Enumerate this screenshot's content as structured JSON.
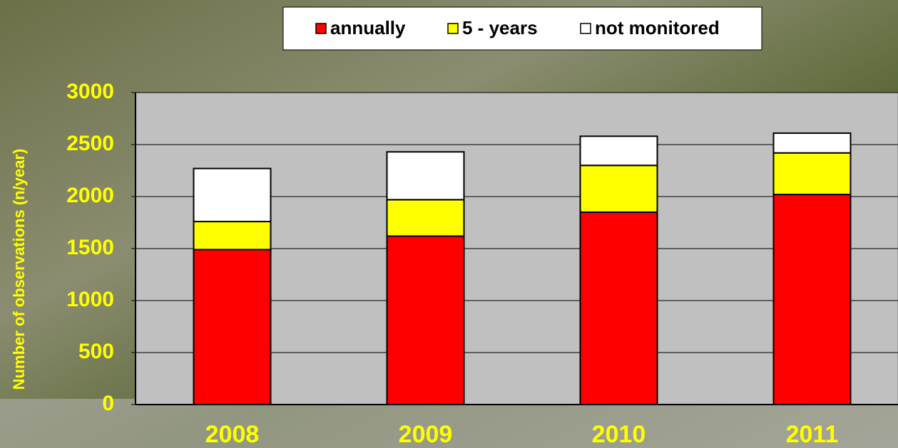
{
  "chart_data": {
    "type": "stacked_bar",
    "y_label": "Number of observations (n/year)",
    "categories": [
      "2008",
      "2009",
      "2010",
      "2011"
    ],
    "series": [
      {
        "name": "annually",
        "color": "#ff0000",
        "values": [
          1490,
          1620,
          1850,
          2020
        ]
      },
      {
        "name": "5 - years",
        "color": "#ffff00",
        "values": [
          270,
          350,
          450,
          400
        ]
      },
      {
        "name": "not monitored",
        "color": "#ffffff",
        "values": [
          510,
          460,
          280,
          190
        ]
      }
    ],
    "ylim": [
      0,
      3000
    ],
    "yticks": [
      0,
      500,
      1000,
      1500,
      2000,
      2500,
      3000
    ],
    "grid": true,
    "legend": "top"
  }
}
